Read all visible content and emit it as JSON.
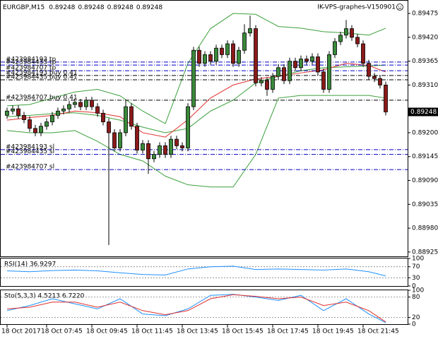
{
  "chart_data": [
    {
      "type": "candlestick",
      "symbol": "EURGBP,M15",
      "header_values": [
        0.89248,
        0.89248,
        0.89248,
        0.89248
      ],
      "watermark": "IK-VPS-graphes-V150901",
      "bull_color": "#3a8a3a",
      "bear_color": "#8b1a1a",
      "open": [
        0.8924,
        0.8925,
        0.89255,
        0.8924,
        0.8923,
        0.8921,
        0.892,
        0.89215,
        0.89225,
        0.8924,
        0.8925,
        0.89255,
        0.89265,
        0.8927,
        0.8926,
        0.89275,
        0.8926,
        0.89245,
        0.89225,
        0.892,
        0.89165,
        0.892,
        0.8926,
        0.89215,
        0.8916,
        0.89175,
        0.8914,
        0.8915,
        0.8917,
        0.8915,
        0.89185,
        0.8917,
        0.89165,
        0.8926,
        0.8939,
        0.8936,
        0.8938,
        0.89365,
        0.89395,
        0.8938,
        0.89405,
        0.8936,
        0.8939,
        0.8943,
        0.8944,
        0.89315,
        0.8932,
        0.893,
        0.8933,
        0.8935,
        0.8932,
        0.89365,
        0.8935,
        0.8937,
        0.89365,
        0.89375,
        0.8934,
        0.893,
        0.8938,
        0.8941,
        0.89425,
        0.8944,
        0.8942,
        0.89405,
        0.8936,
        0.8933,
        0.89325,
        0.8931
      ],
      "high": [
        0.89258,
        0.89263,
        0.89263,
        0.89248,
        0.89238,
        0.89218,
        0.89223,
        0.89233,
        0.89248,
        0.89258,
        0.89263,
        0.89273,
        0.89278,
        0.89278,
        0.89283,
        0.89283,
        0.89268,
        0.89253,
        0.89233,
        0.89208,
        0.89208,
        0.89275,
        0.89268,
        0.89223,
        0.89183,
        0.89183,
        0.89158,
        0.89178,
        0.89178,
        0.89193,
        0.89193,
        0.89178,
        0.89268,
        0.89398,
        0.89398,
        0.89388,
        0.89388,
        0.89403,
        0.89403,
        0.89413,
        0.89413,
        0.89398,
        0.8945,
        0.8947,
        0.89448,
        0.89328,
        0.89328,
        0.89338,
        0.89358,
        0.89358,
        0.89373,
        0.89373,
        0.89378,
        0.89378,
        0.89383,
        0.89383,
        0.89348,
        0.89388,
        0.89418,
        0.89433,
        0.8946,
        0.89448,
        0.89428,
        0.89413,
        0.89368,
        0.89338,
        0.89333,
        0.89318
      ],
      "low": [
        0.89232,
        0.89242,
        0.89232,
        0.89222,
        0.89202,
        0.89192,
        0.89192,
        0.89207,
        0.89217,
        0.89232,
        0.89242,
        0.89247,
        0.89257,
        0.89252,
        0.89252,
        0.89252,
        0.89237,
        0.89217,
        0.88941,
        0.89157,
        0.89157,
        0.89192,
        0.89207,
        0.89152,
        0.89152,
        0.89105,
        0.89132,
        0.89142,
        0.89142,
        0.89142,
        0.89162,
        0.89157,
        0.89157,
        0.89252,
        0.89352,
        0.89352,
        0.89357,
        0.89357,
        0.89372,
        0.89372,
        0.89352,
        0.89352,
        0.89382,
        0.89422,
        0.89307,
        0.89307,
        0.89285,
        0.89292,
        0.89322,
        0.89312,
        0.89312,
        0.89342,
        0.89342,
        0.89357,
        0.89357,
        0.89332,
        0.89292,
        0.89292,
        0.89372,
        0.89402,
        0.89417,
        0.89412,
        0.89397,
        0.89352,
        0.89322,
        0.89317,
        0.89302,
        0.8924
      ],
      "close": [
        0.8925,
        0.89255,
        0.8924,
        0.8923,
        0.8921,
        0.892,
        0.89215,
        0.89225,
        0.8924,
        0.8925,
        0.89255,
        0.89265,
        0.8927,
        0.8926,
        0.89275,
        0.8926,
        0.89245,
        0.89225,
        0.892,
        0.89165,
        0.892,
        0.8926,
        0.89215,
        0.8916,
        0.89175,
        0.8914,
        0.8915,
        0.8917,
        0.8915,
        0.89185,
        0.8917,
        0.89165,
        0.8926,
        0.8939,
        0.8936,
        0.8938,
        0.89365,
        0.89395,
        0.8938,
        0.89405,
        0.8936,
        0.8939,
        0.8943,
        0.8944,
        0.89315,
        0.8932,
        0.893,
        0.8933,
        0.8935,
        0.8932,
        0.89365,
        0.8935,
        0.8937,
        0.89365,
        0.89375,
        0.8934,
        0.893,
        0.8938,
        0.8941,
        0.89425,
        0.8944,
        0.8942,
        0.89405,
        0.8936,
        0.8933,
        0.89325,
        0.8931,
        0.89248
      ],
      "overlay_x": [
        0,
        4,
        8,
        12,
        16,
        20,
        24,
        28,
        32,
        36,
        40,
        44,
        48,
        52,
        56,
        60,
        64,
        67
      ],
      "overlays": [
        {
          "color": "#3ca03c",
          "values": [
            0.89262,
            0.89265,
            0.8928,
            0.89294,
            0.893,
            0.89285,
            0.8925,
            0.89221,
            0.8936,
            0.8944,
            0.89475,
            0.89473,
            0.89445,
            0.89441,
            0.89433,
            0.8943,
            0.89425,
            0.89441
          ]
        },
        {
          "color": "#3ca03c",
          "values": [
            0.89237,
            0.8924,
            0.89244,
            0.89246,
            0.8924,
            0.89229,
            0.89213,
            0.892,
            0.8921,
            0.8925,
            0.89275,
            0.89315,
            0.8933,
            0.89343,
            0.8935,
            0.89352,
            0.89354,
            0.89356
          ]
        },
        {
          "color": "#3ca03c",
          "values": [
            0.89205,
            0.892,
            0.892,
            0.89205,
            0.8918,
            0.8915,
            0.89135,
            0.891,
            0.8908,
            0.89075,
            0.89075,
            0.8915,
            0.8928,
            0.89286,
            0.89286,
            0.89286,
            0.89286,
            0.8928
          ]
        },
        {
          "color": "#e0302c",
          "values": [
            0.89229,
            0.89235,
            0.8924,
            0.8925,
            0.89246,
            0.89237,
            0.892,
            0.8919,
            0.8923,
            0.8928,
            0.8931,
            0.89324,
            0.8933,
            0.89338,
            0.89345,
            0.8936,
            0.89355,
            0.8934
          ]
        }
      ],
      "orders": [
        {
          "label": "#423984193 tp",
          "price": 0.89363,
          "color": "#0000c8"
        },
        {
          "label": "#423984435 tp",
          "price": 0.89356,
          "color": "#0000c8"
        },
        {
          "label": "#423984707 tp",
          "price": 0.89343,
          "color": "#0000c8"
        },
        {
          "label": "#423984193 buy 0.41",
          "price": 0.89332,
          "color": "#000000"
        },
        {
          "label": "#423984435 buy 0.41",
          "price": 0.89322,
          "color": "#000000"
        },
        {
          "label": "#423984707 buy 0.41",
          "price": 0.89275,
          "color": "#000000"
        },
        {
          "label": "#423984193 sl",
          "price": 0.89161,
          "color": "#0000c8"
        },
        {
          "label": "#423984435 sl",
          "price": 0.8915,
          "color": "#0000c8"
        },
        {
          "label": "#423984707 sl",
          "price": 0.89115,
          "color": "#0000c8"
        }
      ],
      "current_price": 0.89248,
      "ylim": [
        0.88915,
        0.89506
      ],
      "yticks": [
        0.89475,
        {
          "value": 0.8942,
          "label": "0.89420"
        },
        0.89365,
        {
          "value": 0.8931,
          "label": "0.89310"
        },
        {
          "value": 0.892,
          "label": "0.89200"
        },
        0.89145,
        {
          "value": 0.8909,
          "label": "0.89090"
        },
        0.89035,
        {
          "value": 0.8898,
          "label": "0.88980"
        },
        0.88925
      ],
      "xticks": [
        {
          "value": 0,
          "label": "18 Oct 2017"
        },
        {
          "value": 7,
          "label": "18 Oct 07:45"
        },
        {
          "value": 15,
          "label": "18 Oct 09:45"
        },
        {
          "value": 23,
          "label": "18 Oct 11:45"
        },
        {
          "value": 31,
          "label": "18 Oct 13:45"
        },
        {
          "value": 39,
          "label": "18 Oct 15:45"
        },
        {
          "value": 47,
          "label": "18 Oct 17:45"
        },
        {
          "value": 55,
          "label": "18 Oct 19:45"
        },
        {
          "value": 63,
          "label": "18 Oct 21:45"
        }
      ]
    },
    {
      "type": "line",
      "title": "RSI(14) 36.9297",
      "x": [
        0,
        4,
        8,
        12,
        16,
        20,
        24,
        28,
        32,
        36,
        40,
        44,
        48,
        52,
        56,
        60,
        64,
        67
      ],
      "series": [
        {
          "color": "#1e90ff",
          "values": [
            55,
            52,
            56,
            58,
            55,
            48,
            42,
            40,
            62,
            70,
            72,
            60,
            62,
            60,
            58,
            62,
            52,
            36.93
          ]
        }
      ],
      "ylim": [
        0,
        100
      ],
      "yticks": [
        100,
        70,
        30,
        0
      ],
      "levels": [
        70,
        30
      ]
    },
    {
      "type": "line",
      "title": "Sto(5,3,3) 4.5213 6.7220",
      "x": [
        0,
        4,
        8,
        12,
        16,
        20,
        24,
        28,
        32,
        36,
        40,
        44,
        48,
        52,
        56,
        60,
        64,
        67
      ],
      "series": [
        {
          "color": "#1e90ff",
          "values": [
            40,
            55,
            75,
            60,
            45,
            75,
            30,
            25,
            45,
            85,
            88,
            80,
            70,
            85,
            40,
            75,
            30,
            4.52
          ]
        },
        {
          "color": "#e0302c",
          "values": [
            45,
            50,
            65,
            65,
            50,
            65,
            40,
            28,
            40,
            75,
            87,
            82,
            75,
            80,
            55,
            65,
            40,
            6.72
          ]
        }
      ],
      "ylim": [
        0,
        100
      ],
      "yticks": [
        100,
        80,
        20,
        0
      ],
      "levels": [
        80,
        20
      ]
    }
  ]
}
